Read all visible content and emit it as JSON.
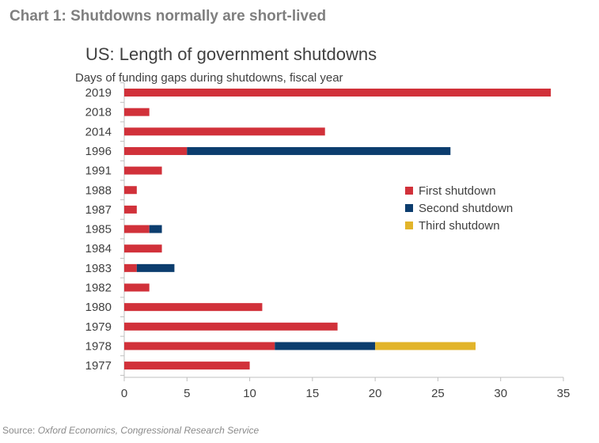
{
  "heading": "Chart 1: Shutdowns normally are short-lived",
  "source_label": "Source:",
  "source_text": "Oxford Economics, Congressional Research Service",
  "chart_data": {
    "type": "bar",
    "orientation": "horizontal",
    "stacked": true,
    "title": "US: Length of government shutdowns",
    "subtitle": "Days of funding gaps during shutdowns, fiscal year",
    "categories": [
      "2019",
      "2018",
      "2014",
      "1996",
      "1991",
      "1988",
      "1987",
      "1985",
      "1984",
      "1983",
      "1982",
      "1980",
      "1979",
      "1978",
      "1977"
    ],
    "series": [
      {
        "name": "First shutdown",
        "color": "#d1313a",
        "values": [
          34,
          2,
          16,
          5,
          3,
          1,
          1,
          2,
          3,
          1,
          2,
          11,
          17,
          12,
          10
        ]
      },
      {
        "name": "Second shutdown",
        "color": "#0c3d6e",
        "values": [
          0,
          0,
          0,
          21,
          0,
          0,
          0,
          1,
          0,
          3,
          0,
          0,
          0,
          8,
          0
        ]
      },
      {
        "name": "Third shutdown",
        "color": "#e2b42a",
        "values": [
          0,
          0,
          0,
          0,
          0,
          0,
          0,
          0,
          0,
          0,
          0,
          0,
          0,
          8,
          0
        ]
      }
    ],
    "xlim": [
      0,
      35
    ],
    "xticks": [
      0,
      5,
      10,
      15,
      20,
      25,
      30,
      35
    ],
    "grid": false,
    "legend_position": "right"
  }
}
